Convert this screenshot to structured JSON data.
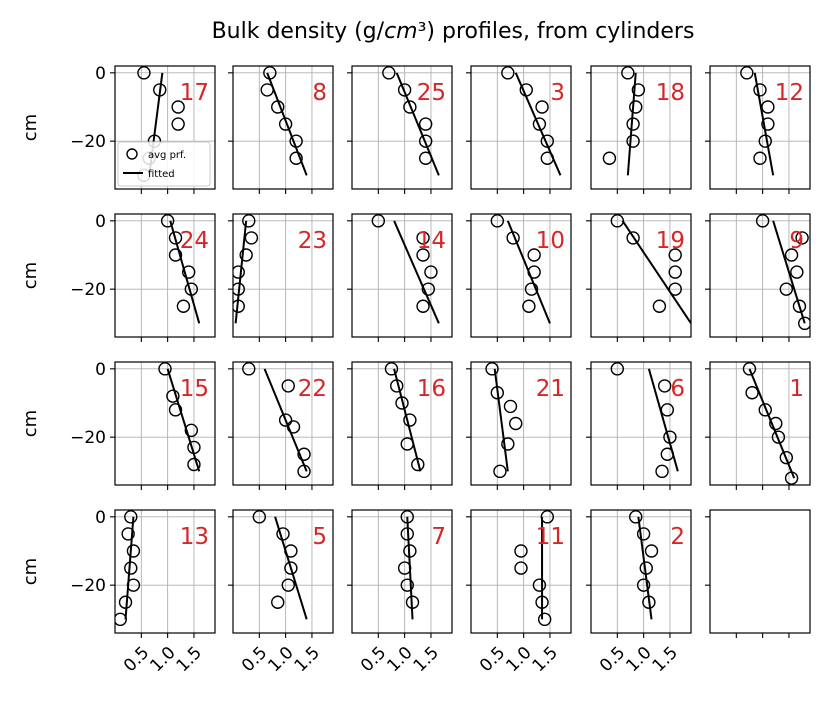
{
  "chart_data": {
    "type": "scatter",
    "title": "Bulk density (g/cm³) profiles, from cylinders",
    "title_parts": [
      "Bulk density (g/",
      "cm",
      "³) profiles, from cylinders"
    ],
    "ylabel": "cm",
    "xlim": [
      0,
      1.9
    ],
    "ylim": [
      -34,
      2
    ],
    "xticks": [
      0.5,
      1.0,
      1.5
    ],
    "xtick_labels": [
      "0.5",
      "1.0",
      "1.5"
    ],
    "yticks": [
      0,
      -20
    ],
    "ytick_labels": [
      "0",
      "−20"
    ],
    "grid": true,
    "legend": {
      "placement": "lower-left",
      "panel": "17",
      "entries": [
        "avg prf.",
        "fitted"
      ]
    },
    "rows": 4,
    "cols": 6,
    "panels": [
      {
        "label": "17",
        "points": [
          [
            0.55,
            0
          ],
          [
            0.85,
            -5
          ],
          [
            1.2,
            -10
          ],
          [
            1.2,
            -15
          ],
          [
            0.75,
            -20
          ],
          [
            0.65,
            -25
          ],
          [
            0.55,
            -30
          ]
        ],
        "fit": [
          [
            0.9,
            0
          ],
          [
            0.65,
            -30
          ]
        ]
      },
      {
        "label": "8",
        "points": [
          [
            0.7,
            0
          ],
          [
            0.65,
            -5
          ],
          [
            0.85,
            -10
          ],
          [
            1.0,
            -15
          ],
          [
            1.2,
            -20
          ],
          [
            1.2,
            -25
          ]
        ],
        "fit": [
          [
            0.65,
            0
          ],
          [
            1.4,
            -30
          ]
        ]
      },
      {
        "label": "25",
        "points": [
          [
            0.7,
            0
          ],
          [
            1.0,
            -5
          ],
          [
            1.1,
            -10
          ],
          [
            1.4,
            -15
          ],
          [
            1.4,
            -20
          ],
          [
            1.4,
            -25
          ]
        ],
        "fit": [
          [
            0.85,
            0
          ],
          [
            1.65,
            -30
          ]
        ]
      },
      {
        "label": "3",
        "points": [
          [
            0.7,
            0
          ],
          [
            1.05,
            -5
          ],
          [
            1.35,
            -10
          ],
          [
            1.3,
            -15
          ],
          [
            1.45,
            -20
          ],
          [
            1.45,
            -25
          ]
        ],
        "fit": [
          [
            0.85,
            0
          ],
          [
            1.7,
            -30
          ]
        ]
      },
      {
        "label": "18",
        "points": [
          [
            0.7,
            0
          ],
          [
            0.9,
            -5
          ],
          [
            0.85,
            -10
          ],
          [
            0.8,
            -15
          ],
          [
            0.8,
            -20
          ],
          [
            0.35,
            -25
          ]
        ],
        "fit": [
          [
            0.85,
            0
          ],
          [
            0.7,
            -30
          ]
        ]
      },
      {
        "label": "12",
        "points": [
          [
            0.7,
            0
          ],
          [
            0.95,
            -5
          ],
          [
            1.1,
            -10
          ],
          [
            1.1,
            -15
          ],
          [
            1.05,
            -20
          ],
          [
            0.95,
            -25
          ]
        ],
        "fit": [
          [
            0.85,
            0
          ],
          [
            1.2,
            -30
          ]
        ]
      },
      {
        "label": "24",
        "points": [
          [
            1.0,
            0
          ],
          [
            1.15,
            -5
          ],
          [
            1.15,
            -10
          ],
          [
            1.4,
            -15
          ],
          [
            1.45,
            -20
          ],
          [
            1.3,
            -25
          ]
        ],
        "fit": [
          [
            1.05,
            0
          ],
          [
            1.6,
            -30
          ]
        ]
      },
      {
        "label": "23",
        "points": [
          [
            0.3,
            0
          ],
          [
            0.35,
            -5
          ],
          [
            0.25,
            -10
          ],
          [
            0.1,
            -15
          ],
          [
            0.1,
            -20
          ],
          [
            0.1,
            -25
          ]
        ],
        "fit": [
          [
            0.25,
            0
          ],
          [
            0.05,
            -30
          ]
        ]
      },
      {
        "label": "14",
        "points": [
          [
            0.5,
            0
          ],
          [
            1.35,
            -5
          ],
          [
            1.35,
            -10
          ],
          [
            1.5,
            -15
          ],
          [
            1.45,
            -20
          ],
          [
            1.35,
            -25
          ]
        ],
        "fit": [
          [
            0.8,
            0
          ],
          [
            1.65,
            -30
          ]
        ]
      },
      {
        "label": "10",
        "points": [
          [
            0.5,
            0
          ],
          [
            0.8,
            -5
          ],
          [
            1.2,
            -10
          ],
          [
            1.2,
            -15
          ],
          [
            1.15,
            -20
          ],
          [
            1.1,
            -25
          ]
        ],
        "fit": [
          [
            0.7,
            0
          ],
          [
            1.5,
            -30
          ]
        ]
      },
      {
        "label": "19",
        "points": [
          [
            0.5,
            0
          ],
          [
            0.8,
            -5
          ],
          [
            1.6,
            -10
          ],
          [
            1.6,
            -15
          ],
          [
            1.6,
            -20
          ],
          [
            1.3,
            -25
          ]
        ],
        "fit": [
          [
            0.6,
            0
          ],
          [
            1.9,
            -30
          ]
        ]
      },
      {
        "label": "9",
        "points": [
          [
            1.0,
            0
          ],
          [
            1.75,
            -5
          ],
          [
            1.55,
            -10
          ],
          [
            1.65,
            -15
          ],
          [
            1.45,
            -20
          ],
          [
            1.7,
            -25
          ],
          [
            1.8,
            -30
          ]
        ],
        "fit": [
          [
            1.2,
            0
          ],
          [
            1.8,
            -30
          ]
        ]
      },
      {
        "label": "15",
        "points": [
          [
            0.95,
            0
          ],
          [
            1.1,
            -8
          ],
          [
            1.15,
            -12
          ],
          [
            1.45,
            -18
          ],
          [
            1.5,
            -23
          ],
          [
            1.5,
            -28
          ]
        ],
        "fit": [
          [
            1.0,
            0
          ],
          [
            1.6,
            -30
          ]
        ]
      },
      {
        "label": "22",
        "points": [
          [
            0.3,
            0
          ],
          [
            1.05,
            -5
          ],
          [
            1.0,
            -15
          ],
          [
            1.15,
            -17
          ],
          [
            1.35,
            -25
          ],
          [
            1.35,
            -30
          ]
        ],
        "fit": [
          [
            0.6,
            0
          ],
          [
            1.4,
            -30
          ]
        ]
      },
      {
        "label": "16",
        "points": [
          [
            0.75,
            0
          ],
          [
            0.85,
            -5
          ],
          [
            0.95,
            -10
          ],
          [
            1.1,
            -15
          ],
          [
            1.05,
            -22
          ],
          [
            1.25,
            -28
          ]
        ],
        "fit": [
          [
            0.8,
            0
          ],
          [
            1.3,
            -30
          ]
        ]
      },
      {
        "label": "21",
        "points": [
          [
            0.4,
            0
          ],
          [
            0.5,
            -7
          ],
          [
            0.75,
            -11
          ],
          [
            0.85,
            -16
          ],
          [
            0.7,
            -22
          ],
          [
            0.55,
            -30
          ]
        ],
        "fit": [
          [
            0.45,
            0
          ],
          [
            0.7,
            -30
          ]
        ]
      },
      {
        "label": "6",
        "points": [
          [
            0.5,
            0
          ],
          [
            1.4,
            -5
          ],
          [
            1.45,
            -12
          ],
          [
            1.5,
            -20
          ],
          [
            1.45,
            -25
          ],
          [
            1.35,
            -30
          ]
        ],
        "fit": [
          [
            1.1,
            0
          ],
          [
            1.65,
            -30
          ]
        ]
      },
      {
        "label": "1",
        "points": [
          [
            0.75,
            0
          ],
          [
            0.8,
            -7
          ],
          [
            1.05,
            -12
          ],
          [
            1.25,
            -16
          ],
          [
            1.3,
            -20
          ],
          [
            1.45,
            -26
          ],
          [
            1.55,
            -32
          ]
        ],
        "fit": [
          [
            0.75,
            0
          ],
          [
            1.6,
            -32
          ]
        ]
      },
      {
        "label": "13",
        "points": [
          [
            0.3,
            0
          ],
          [
            0.25,
            -5
          ],
          [
            0.35,
            -10
          ],
          [
            0.3,
            -15
          ],
          [
            0.35,
            -20
          ],
          [
            0.2,
            -25
          ],
          [
            0.1,
            -30
          ]
        ],
        "fit": [
          [
            0.35,
            0
          ],
          [
            0.2,
            -30
          ]
        ]
      },
      {
        "label": "5",
        "points": [
          [
            0.5,
            0
          ],
          [
            0.95,
            -5
          ],
          [
            1.1,
            -10
          ],
          [
            1.1,
            -15
          ],
          [
            1.05,
            -20
          ],
          [
            0.85,
            -25
          ]
        ],
        "fit": [
          [
            0.8,
            0
          ],
          [
            1.4,
            -30
          ]
        ]
      },
      {
        "label": "7",
        "points": [
          [
            1.05,
            0
          ],
          [
            1.05,
            -5
          ],
          [
            1.1,
            -10
          ],
          [
            1.0,
            -15
          ],
          [
            1.05,
            -20
          ],
          [
            1.15,
            -25
          ]
        ],
        "fit": [
          [
            1.05,
            0
          ],
          [
            1.15,
            -30
          ]
        ]
      },
      {
        "label": "11",
        "points": [
          [
            1.45,
            0
          ],
          [
            0.95,
            -10
          ],
          [
            0.95,
            -15
          ],
          [
            1.3,
            -20
          ],
          [
            1.35,
            -25
          ],
          [
            1.4,
            -30
          ]
        ],
        "fit": [
          [
            1.35,
            0
          ],
          [
            1.35,
            -30
          ]
        ]
      },
      {
        "label": "2",
        "points": [
          [
            0.85,
            0
          ],
          [
            1.0,
            -5
          ],
          [
            1.15,
            -10
          ],
          [
            1.05,
            -15
          ],
          [
            1.0,
            -20
          ],
          [
            1.1,
            -25
          ]
        ],
        "fit": [
          [
            0.9,
            0
          ],
          [
            1.15,
            -30
          ]
        ]
      },
      {
        "label": "",
        "points": [],
        "fit": [],
        "empty": true
      }
    ]
  }
}
